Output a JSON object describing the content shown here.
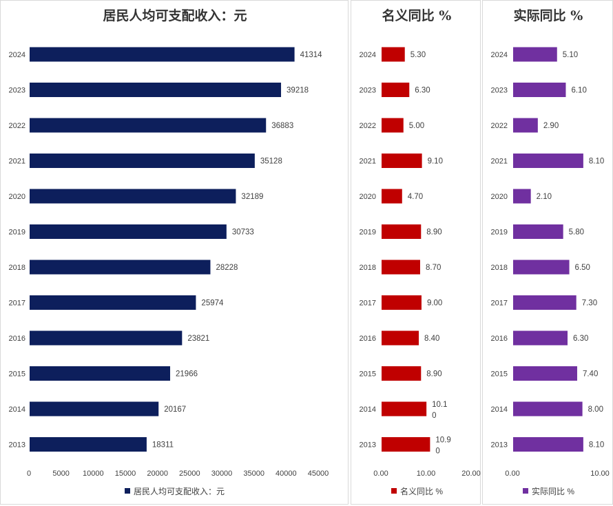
{
  "chart_data": [
    {
      "type": "bar",
      "orientation": "horizontal",
      "title": "居民人均可支配收入：元",
      "categories": [
        "2024",
        "2023",
        "2022",
        "2021",
        "2020",
        "2019",
        "2018",
        "2017",
        "2016",
        "2015",
        "2014",
        "2013"
      ],
      "values": [
        41314,
        39218,
        36883,
        35128,
        32189,
        30733,
        28228,
        25974,
        23821,
        21966,
        20167,
        18311
      ],
      "labels": [
        "41314",
        "39218",
        "36883",
        "35128",
        "32189",
        "30733",
        "28228",
        "25974",
        "23821",
        "21966",
        "20167",
        "18311"
      ],
      "xlim": [
        0,
        45000
      ],
      "xticks": [
        "0",
        "5000",
        "10000",
        "15000",
        "20000",
        "25000",
        "30000",
        "35000",
        "40000",
        "45000"
      ],
      "legend": "居民人均可支配收入：元",
      "color": "#0d1f5c"
    },
    {
      "type": "bar",
      "orientation": "horizontal",
      "title": "名义同比 %",
      "categories": [
        "2024",
        "2023",
        "2022",
        "2021",
        "2020",
        "2019",
        "2018",
        "2017",
        "2016",
        "2015",
        "2014",
        "2013"
      ],
      "values": [
        5.3,
        6.3,
        5.0,
        9.1,
        4.7,
        8.9,
        8.7,
        9.0,
        8.4,
        8.9,
        10.1,
        10.9
      ],
      "labels": [
        "5.30",
        "6.30",
        "5.00",
        "9.10",
        "4.70",
        "8.90",
        "8.70",
        "9.00",
        "8.40",
        "8.90",
        "10.10",
        "10.90"
      ],
      "xlim": [
        0,
        20
      ],
      "xticks": [
        "0.00",
        "10.00",
        "20.00"
      ],
      "legend": "名义同比 %",
      "color": "#c00000"
    },
    {
      "type": "bar",
      "orientation": "horizontal",
      "title": "实际同比 %",
      "categories": [
        "2024",
        "2023",
        "2022",
        "2021",
        "2020",
        "2019",
        "2018",
        "2017",
        "2016",
        "2015",
        "2014",
        "2013"
      ],
      "values": [
        5.1,
        6.1,
        2.9,
        8.1,
        2.1,
        5.8,
        6.5,
        7.3,
        6.3,
        7.4,
        8.0,
        8.1
      ],
      "labels": [
        "5.10",
        "6.10",
        "2.90",
        "8.10",
        "2.10",
        "5.80",
        "6.50",
        "7.30",
        "6.30",
        "7.40",
        "8.00",
        "8.10"
      ],
      "xlim": [
        0,
        10
      ],
      "xticks": [
        "0.00",
        "10.00"
      ],
      "legend": "实际同比 %",
      "color": "#7030a0"
    }
  ]
}
